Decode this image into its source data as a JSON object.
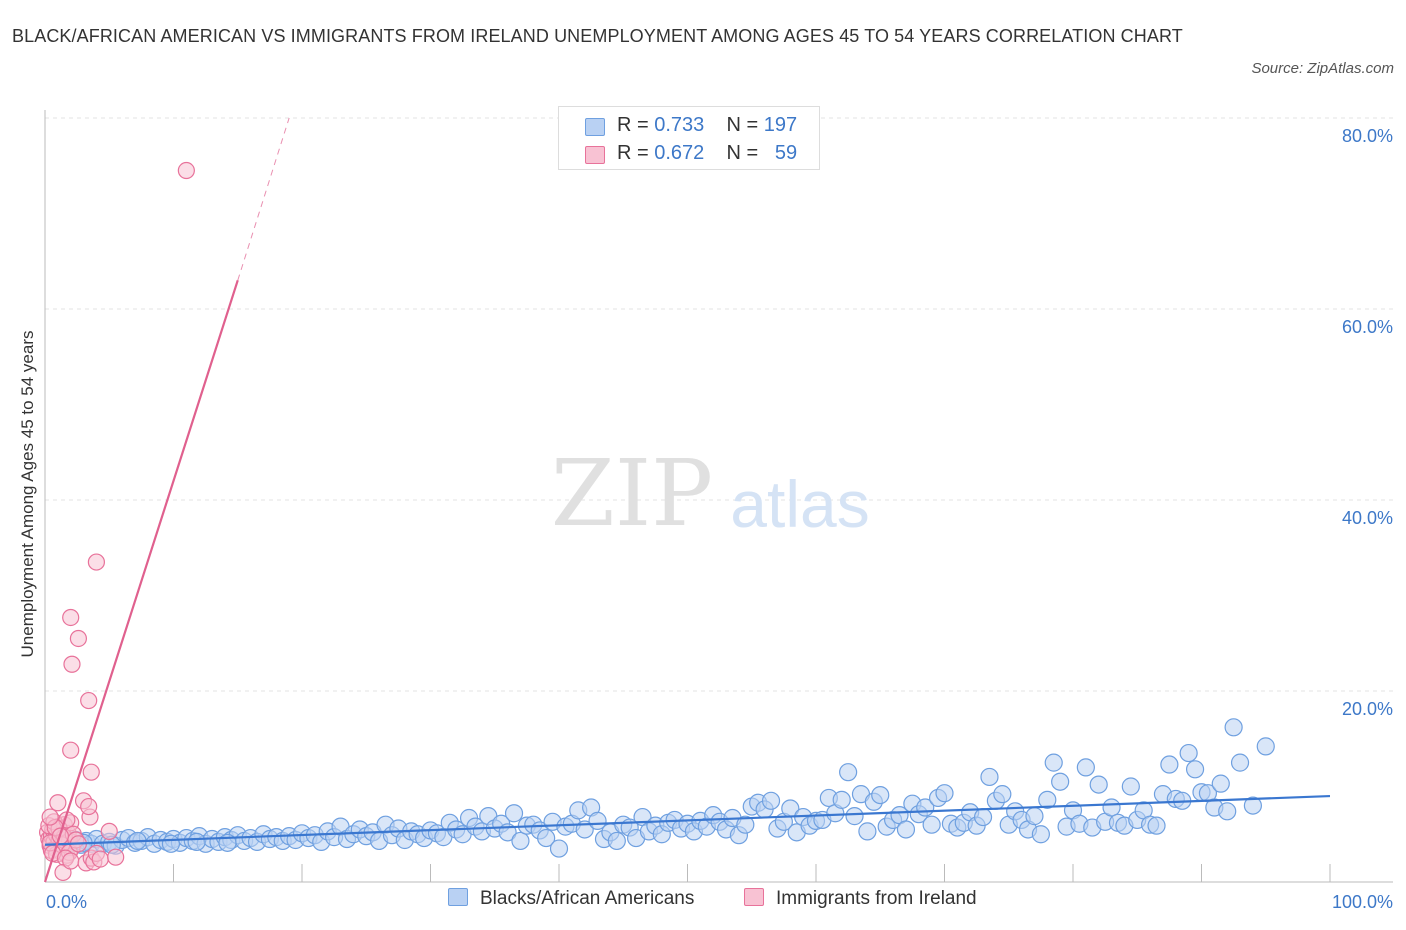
{
  "title": "BLACK/AFRICAN AMERICAN VS IMMIGRANTS FROM IRELAND UNEMPLOYMENT AMONG AGES 45 TO 54 YEARS CORRELATION CHART",
  "source": "Source: ZipAtlas.com",
  "watermark": {
    "zip": "ZIP",
    "atlas": "atlas"
  },
  "colors": {
    "blue": "#6fa0e0",
    "blue_fill": "#b9d1f3",
    "blue_line": "#3a77d0",
    "pink": "#e8729a",
    "pink_fill": "#f8c2d3",
    "pink_line": "#e0608e",
    "axis_text": "#3d78c8",
    "grid": "#e3e3e3"
  },
  "legend": {
    "rows": [
      {
        "r_label": "R =",
        "r_value": "0.733",
        "n_label": "N =",
        "n_value": "197"
      },
      {
        "r_label": "R =",
        "r_value": "0.672",
        "n_label": "N =",
        "n_value": "59"
      }
    ]
  },
  "chart_data": {
    "type": "scatter",
    "title": "BLACK/AFRICAN AMERICAN VS IMMIGRANTS FROM IRELAND UNEMPLOYMENT AMONG AGES 45 TO 54 YEARS CORRELATION CHART",
    "xlabel": "",
    "ylabel": "Unemployment Among Ages 45 to 54 years",
    "xlim": [
      0,
      100
    ],
    "ylim": [
      0,
      80
    ],
    "x_tick_labels": [
      {
        "value": 0,
        "label": "0.0%"
      },
      {
        "value": 100,
        "label": "100.0%"
      }
    ],
    "y_tick_labels": [
      {
        "value": 20,
        "label": "20.0%"
      },
      {
        "value": 40,
        "label": "40.0%"
      },
      {
        "value": 60,
        "label": "60.0%"
      },
      {
        "value": 80,
        "label": "80.0%"
      }
    ],
    "series": [
      {
        "name": "Blacks/African Americans",
        "R": 0.733,
        "N": 197,
        "trend": {
          "x": [
            0,
            100
          ],
          "y": [
            3.9,
            9.0
          ]
        },
        "points": [
          [
            0.5,
            4.2
          ],
          [
            0.8,
            3.8
          ],
          [
            1.0,
            4.5
          ],
          [
            1.3,
            4.0
          ],
          [
            1.6,
            3.6
          ],
          [
            2.0,
            4.1
          ],
          [
            2.4,
            4.4
          ],
          [
            2.8,
            3.9
          ],
          [
            3.2,
            4.3
          ],
          [
            3.6,
            4.0
          ],
          [
            4.0,
            4.5
          ],
          [
            4.5,
            4.0
          ],
          [
            5.0,
            4.2
          ],
          [
            5.5,
            3.8
          ],
          [
            6.0,
            4.4
          ],
          [
            6.5,
            4.6
          ],
          [
            7.0,
            4.1
          ],
          [
            7.5,
            4.3
          ],
          [
            8.0,
            4.7
          ],
          [
            8.5,
            4.0
          ],
          [
            9.0,
            4.4
          ],
          [
            9.5,
            4.2
          ],
          [
            10.0,
            4.5
          ],
          [
            10.5,
            4.1
          ],
          [
            11.0,
            4.6
          ],
          [
            11.5,
            4.3
          ],
          [
            12.0,
            4.8
          ],
          [
            12.5,
            4.0
          ],
          [
            13.0,
            4.5
          ],
          [
            13.5,
            4.2
          ],
          [
            14.0,
            4.7
          ],
          [
            14.5,
            4.4
          ],
          [
            15.0,
            4.9
          ],
          [
            15.5,
            4.3
          ],
          [
            16.0,
            4.6
          ],
          [
            16.5,
            4.2
          ],
          [
            17.0,
            5.0
          ],
          [
            17.5,
            4.5
          ],
          [
            18.0,
            4.7
          ],
          [
            18.5,
            4.3
          ],
          [
            19.0,
            4.8
          ],
          [
            19.5,
            4.4
          ],
          [
            20.0,
            5.1
          ],
          [
            20.5,
            4.6
          ],
          [
            21.0,
            4.9
          ],
          [
            21.5,
            4.2
          ],
          [
            22.0,
            5.3
          ],
          [
            22.5,
            4.7
          ],
          [
            23.0,
            5.8
          ],
          [
            23.5,
            4.5
          ],
          [
            24.0,
            5.0
          ],
          [
            24.5,
            5.5
          ],
          [
            25.0,
            4.8
          ],
          [
            25.5,
            5.2
          ],
          [
            26.0,
            4.3
          ],
          [
            26.5,
            6.0
          ],
          [
            27.0,
            4.9
          ],
          [
            27.5,
            5.6
          ],
          [
            28.0,
            4.4
          ],
          [
            28.5,
            5.3
          ],
          [
            29.0,
            5.0
          ],
          [
            29.5,
            4.6
          ],
          [
            30.0,
            5.4
          ],
          [
            30.5,
            5.1
          ],
          [
            31.0,
            4.7
          ],
          [
            31.5,
            6.2
          ],
          [
            32.0,
            5.5
          ],
          [
            32.5,
            5.0
          ],
          [
            33.0,
            6.7
          ],
          [
            33.5,
            5.8
          ],
          [
            34.0,
            5.3
          ],
          [
            34.5,
            6.9
          ],
          [
            35.0,
            5.6
          ],
          [
            35.5,
            6.1
          ],
          [
            36.0,
            5.2
          ],
          [
            36.5,
            7.2
          ],
          [
            37.0,
            4.3
          ],
          [
            37.5,
            5.9
          ],
          [
            38.0,
            6.0
          ],
          [
            38.5,
            5.4
          ],
          [
            39.0,
            4.6
          ],
          [
            39.5,
            6.3
          ],
          [
            40.0,
            3.5
          ],
          [
            40.5,
            5.8
          ],
          [
            41.0,
            6.1
          ],
          [
            41.5,
            7.5
          ],
          [
            42.0,
            5.5
          ],
          [
            42.5,
            7.8
          ],
          [
            43.0,
            6.4
          ],
          [
            43.5,
            4.5
          ],
          [
            44.0,
            5.2
          ],
          [
            44.5,
            4.3
          ],
          [
            45.0,
            6.0
          ],
          [
            45.5,
            5.7
          ],
          [
            46.0,
            4.6
          ],
          [
            46.5,
            6.8
          ],
          [
            47.0,
            5.3
          ],
          [
            47.5,
            5.9
          ],
          [
            48.0,
            5.0
          ],
          [
            48.5,
            6.2
          ],
          [
            49.0,
            6.5
          ],
          [
            49.5,
            5.6
          ],
          [
            50.0,
            6.1
          ],
          [
            50.5,
            5.3
          ],
          [
            51.0,
            6.4
          ],
          [
            51.5,
            5.8
          ],
          [
            52.0,
            7.0
          ],
          [
            52.5,
            6.3
          ],
          [
            53.0,
            5.5
          ],
          [
            53.5,
            6.7
          ],
          [
            54.0,
            4.9
          ],
          [
            54.5,
            6.0
          ],
          [
            55.0,
            7.9
          ],
          [
            55.5,
            8.3
          ],
          [
            56.0,
            7.6
          ],
          [
            56.5,
            8.5
          ],
          [
            57.0,
            5.6
          ],
          [
            57.5,
            6.3
          ],
          [
            58.0,
            7.7
          ],
          [
            58.5,
            5.2
          ],
          [
            59.0,
            6.8
          ],
          [
            59.5,
            5.9
          ],
          [
            60.0,
            6.4
          ],
          [
            60.5,
            6.5
          ],
          [
            61.0,
            8.8
          ],
          [
            61.5,
            7.2
          ],
          [
            62.0,
            8.6
          ],
          [
            62.5,
            11.5
          ],
          [
            63.0,
            6.9
          ],
          [
            63.5,
            9.2
          ],
          [
            64.0,
            5.3
          ],
          [
            64.5,
            8.4
          ],
          [
            65.0,
            9.1
          ],
          [
            65.5,
            5.8
          ],
          [
            66.0,
            6.5
          ],
          [
            66.5,
            7.0
          ],
          [
            67.0,
            5.5
          ],
          [
            67.5,
            8.2
          ],
          [
            68.0,
            7.1
          ],
          [
            68.5,
            7.8
          ],
          [
            69.0,
            6.0
          ],
          [
            69.5,
            8.8
          ],
          [
            70.0,
            9.3
          ],
          [
            70.5,
            6.1
          ],
          [
            71.0,
            5.7
          ],
          [
            71.5,
            6.2
          ],
          [
            72.0,
            7.3
          ],
          [
            72.5,
            5.9
          ],
          [
            73.0,
            6.8
          ],
          [
            73.5,
            11.0
          ],
          [
            74.0,
            8.5
          ],
          [
            74.5,
            9.2
          ],
          [
            75.0,
            6.0
          ],
          [
            75.5,
            7.4
          ],
          [
            76.0,
            6.5
          ],
          [
            76.5,
            5.5
          ],
          [
            77.0,
            6.9
          ],
          [
            77.5,
            5.0
          ],
          [
            78.0,
            8.6
          ],
          [
            78.5,
            12.5
          ],
          [
            79.0,
            10.5
          ],
          [
            79.5,
            5.8
          ],
          [
            80.0,
            7.5
          ],
          [
            80.5,
            6.1
          ],
          [
            81.0,
            12.0
          ],
          [
            81.5,
            5.7
          ],
          [
            82.0,
            10.2
          ],
          [
            82.5,
            6.3
          ],
          [
            83.0,
            7.8
          ],
          [
            83.5,
            6.2
          ],
          [
            84.0,
            5.9
          ],
          [
            84.5,
            10.0
          ],
          [
            85.0,
            6.5
          ],
          [
            85.5,
            7.5
          ],
          [
            86.0,
            6.0
          ],
          [
            86.5,
            5.9
          ],
          [
            87.0,
            9.2
          ],
          [
            87.5,
            12.3
          ],
          [
            88.0,
            8.7
          ],
          [
            88.5,
            8.5
          ],
          [
            89.0,
            13.5
          ],
          [
            89.5,
            11.8
          ],
          [
            90.0,
            9.4
          ],
          [
            90.5,
            9.3
          ],
          [
            91.0,
            7.8
          ],
          [
            91.5,
            10.3
          ],
          [
            92.0,
            7.4
          ],
          [
            92.5,
            16.2
          ],
          [
            93.0,
            12.5
          ],
          [
            94.0,
            8.0
          ],
          [
            95.0,
            14.2
          ],
          [
            3.0,
            4.1
          ],
          [
            5.2,
            3.9
          ],
          [
            7.2,
            4.3
          ],
          [
            9.8,
            4.0
          ],
          [
            11.8,
            4.2
          ],
          [
            14.2,
            4.1
          ]
        ]
      },
      {
        "name": "Immigrants from Ireland",
        "R": 0.672,
        "N": 59,
        "trend": {
          "x": [
            0,
            15
          ],
          "y": [
            0,
            63
          ],
          "dashed_extension": {
            "x": [
              15,
              19
            ],
            "y": [
              63,
              80
            ]
          }
        },
        "points": [
          [
            0.2,
            5.2
          ],
          [
            0.3,
            4.5
          ],
          [
            0.4,
            3.8
          ],
          [
            0.5,
            4.8
          ],
          [
            0.6,
            5.5
          ],
          [
            0.7,
            4.2
          ],
          [
            0.8,
            3.5
          ],
          [
            0.9,
            4.9
          ],
          [
            1.0,
            5.8
          ],
          [
            1.1,
            4.4
          ],
          [
            1.2,
            3.2
          ],
          [
            1.3,
            5.3
          ],
          [
            1.4,
            4.6
          ],
          [
            1.5,
            6.0
          ],
          [
            1.6,
            4.0
          ],
          [
            1.7,
            2.8
          ],
          [
            1.8,
            5.1
          ],
          [
            1.9,
            4.3
          ],
          [
            2.0,
            6.2
          ],
          [
            2.1,
            3.6
          ],
          [
            0.3,
            5.9
          ],
          [
            0.5,
            3.3
          ],
          [
            0.7,
            6.3
          ],
          [
            0.9,
            2.9
          ],
          [
            1.1,
            5.6
          ],
          [
            1.3,
            3.9
          ],
          [
            1.5,
            4.7
          ],
          [
            1.7,
            6.5
          ],
          [
            1.9,
            3.1
          ],
          [
            2.2,
            5.0
          ],
          [
            0.4,
            4.1
          ],
          [
            0.6,
            3.0
          ],
          [
            0.8,
            5.7
          ],
          [
            1.2,
            4.8
          ],
          [
            1.6,
            2.5
          ],
          [
            2.4,
            4.4
          ],
          [
            0.4,
            6.8
          ],
          [
            1.0,
            8.3
          ],
          [
            1.4,
            1.0
          ],
          [
            2.0,
            2.2
          ],
          [
            2.6,
            4.0
          ],
          [
            3.0,
            8.5
          ],
          [
            3.2,
            2.0
          ],
          [
            3.5,
            6.8
          ],
          [
            3.4,
            7.9
          ],
          [
            3.6,
            2.5
          ],
          [
            3.8,
            2.1
          ],
          [
            4.0,
            3.0
          ],
          [
            4.3,
            2.4
          ],
          [
            5.0,
            5.3
          ],
          [
            5.5,
            2.6
          ],
          [
            2.0,
            13.8
          ],
          [
            3.6,
            11.5
          ],
          [
            3.4,
            19.0
          ],
          [
            2.1,
            22.8
          ],
          [
            2.6,
            25.5
          ],
          [
            2.0,
            27.7
          ],
          [
            4.0,
            33.5
          ],
          [
            11.0,
            74.5
          ]
        ]
      }
    ]
  },
  "bottom_legend": [
    {
      "label": "Blacks/African Americans"
    },
    {
      "label": "Immigrants from Ireland"
    }
  ]
}
